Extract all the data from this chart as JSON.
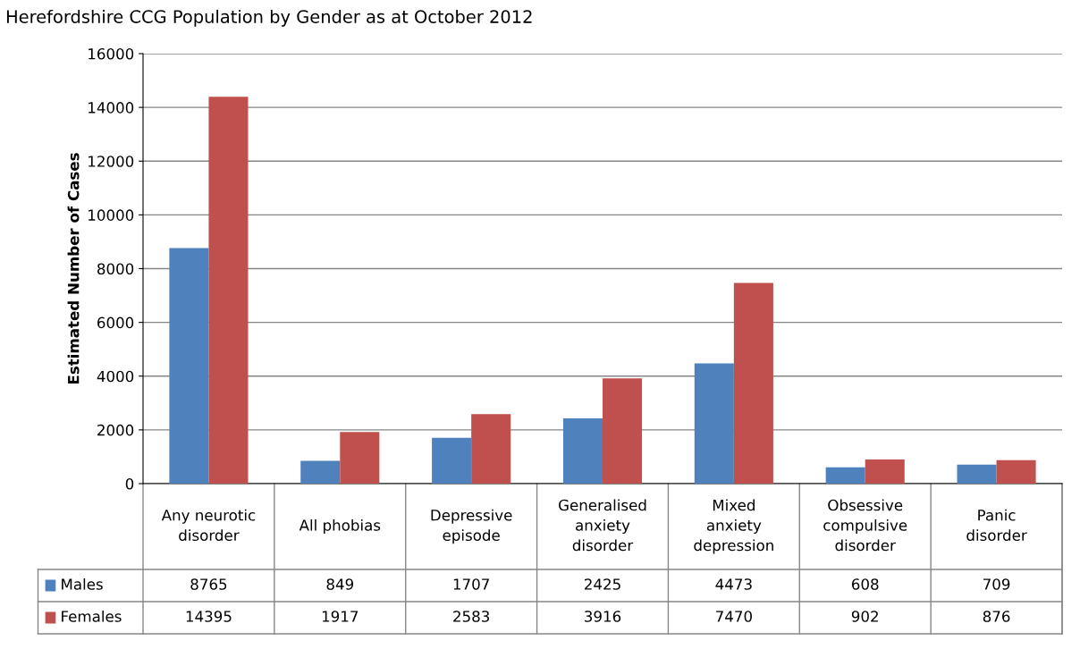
{
  "chart_data": {
    "type": "bar",
    "title": "Herefordshire CCG Population by Gender as at October 2012",
    "ylabel": "Estimated Number of Cases",
    "categories": [
      "Any neurotic\ndisorder",
      "All phobias",
      "Depressive\nepisode",
      "Generalised\nanxiety\ndisorder",
      "Mixed\nanxiety\ndepression",
      "Obsessive\ncompulsive\ndisorder",
      "Panic\ndisorder"
    ],
    "series": [
      {
        "name": "Males",
        "color": "#4f81bd",
        "values": [
          8765,
          849,
          1707,
          2425,
          4473,
          608,
          709
        ]
      },
      {
        "name": "Females",
        "color": "#c0504d",
        "values": [
          14395,
          1917,
          2583,
          3916,
          7470,
          902,
          876
        ]
      }
    ],
    "ylim": [
      0,
      16000
    ],
    "yticks": [
      0,
      2000,
      4000,
      6000,
      8000,
      10000,
      12000,
      14000,
      16000
    ],
    "grid": "y",
    "legend": "bottom",
    "data_labels": true
  }
}
